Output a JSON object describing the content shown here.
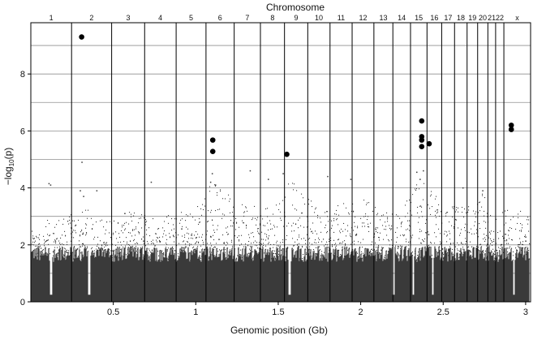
{
  "chart_data": {
    "type": "scatter",
    "title": "",
    "top_axis_title": "Chromosome",
    "xlabel": "Genomic position (Gb)",
    "ylabel_main": "−log",
    "ylabel_sub": "10",
    "ylabel_tail": "(p)",
    "xlim": [
      0.0,
      3.03
    ],
    "ylim": [
      0,
      9.8
    ],
    "x_ticks": [
      0.5,
      1.0,
      1.5,
      2.0,
      2.5,
      3.0
    ],
    "x_tick_labels": [
      "0.5",
      "1",
      "1.5",
      "2",
      "2.5",
      "3"
    ],
    "y_ticks": [
      0,
      2,
      4,
      6,
      8
    ],
    "y_tick_labels": [
      "0",
      "2",
      "4",
      "6",
      "8"
    ],
    "horizontal_grid": [
      1,
      2,
      3,
      4,
      5,
      6,
      7,
      8,
      9
    ],
    "grid": true,
    "chromosomes": [
      {
        "label": "1",
        "start": 0.0,
        "end": 0.247
      },
      {
        "label": "2",
        "start": 0.247,
        "end": 0.49
      },
      {
        "label": "3",
        "start": 0.49,
        "end": 0.69
      },
      {
        "label": "4",
        "start": 0.69,
        "end": 0.881
      },
      {
        "label": "5",
        "start": 0.881,
        "end": 1.062
      },
      {
        "label": "6",
        "start": 1.062,
        "end": 1.233
      },
      {
        "label": "7",
        "start": 1.233,
        "end": 1.392
      },
      {
        "label": "8",
        "start": 1.392,
        "end": 1.538
      },
      {
        "label": "9",
        "start": 1.538,
        "end": 1.679
      },
      {
        "label": "10",
        "start": 1.679,
        "end": 1.814
      },
      {
        "label": "11",
        "start": 1.814,
        "end": 1.948
      },
      {
        "label": "12",
        "start": 1.948,
        "end": 2.08
      },
      {
        "label": "13",
        "start": 2.08,
        "end": 2.195
      },
      {
        "label": "14",
        "start": 2.195,
        "end": 2.302
      },
      {
        "label": "15",
        "start": 2.302,
        "end": 2.402
      },
      {
        "label": "16",
        "start": 2.402,
        "end": 2.491
      },
      {
        "label": "17",
        "start": 2.491,
        "end": 2.569
      },
      {
        "label": "18",
        "start": 2.569,
        "end": 2.645
      },
      {
        "label": "19",
        "start": 2.645,
        "end": 2.709
      },
      {
        "label": "20",
        "start": 2.709,
        "end": 2.771
      },
      {
        "label": "21",
        "start": 2.771,
        "end": 2.818
      },
      {
        "label": "22",
        "start": 2.818,
        "end": 2.868
      },
      {
        "label": "x",
        "start": 2.868,
        "end": 3.03
      }
    ],
    "background_association": {
      "description_free": true,
      "typical_max": [
        {
          "x": 0.02,
          "y": 2.4
        },
        {
          "x": 0.1,
          "y": 2.9
        },
        {
          "x": 0.2,
          "y": 3.0
        },
        {
          "x": 0.33,
          "y": 3.3
        },
        {
          "x": 0.45,
          "y": 2.9
        },
        {
          "x": 0.6,
          "y": 3.2
        },
        {
          "x": 0.78,
          "y": 3.1
        },
        {
          "x": 0.97,
          "y": 3.2
        },
        {
          "x": 1.1,
          "y": 4.4
        },
        {
          "x": 1.3,
          "y": 3.4
        },
        {
          "x": 1.46,
          "y": 3.3
        },
        {
          "x": 1.55,
          "y": 4.4
        },
        {
          "x": 1.75,
          "y": 3.4
        },
        {
          "x": 1.88,
          "y": 3.5
        },
        {
          "x": 2.01,
          "y": 3.7
        },
        {
          "x": 2.14,
          "y": 3.1
        },
        {
          "x": 2.25,
          "y": 3.4
        },
        {
          "x": 2.36,
          "y": 4.4
        },
        {
          "x": 2.45,
          "y": 3.8
        },
        {
          "x": 2.53,
          "y": 3.4
        },
        {
          "x": 2.61,
          "y": 3.5
        },
        {
          "x": 2.68,
          "y": 3.3
        },
        {
          "x": 2.74,
          "y": 4.0
        },
        {
          "x": 2.8,
          "y": 3.0
        },
        {
          "x": 2.84,
          "y": 3.2
        },
        {
          "x": 2.95,
          "y": 3.3
        },
        {
          "x": 3.02,
          "y": 3.1
        }
      ],
      "gaps": [
        0.122,
        0.355,
        1.57,
        2.198,
        2.318,
        2.437,
        2.93
      ]
    },
    "scattered_points": [
      {
        "x": 0.11,
        "y": 4.15
      },
      {
        "x": 0.12,
        "y": 4.1
      },
      {
        "x": 0.31,
        "y": 4.9
      },
      {
        "x": 0.3,
        "y": 3.9
      },
      {
        "x": 0.32,
        "y": 3.7
      },
      {
        "x": 0.4,
        "y": 3.9
      },
      {
        "x": 0.57,
        "y": 3.1
      },
      {
        "x": 0.73,
        "y": 4.2
      },
      {
        "x": 1.1,
        "y": 4.5
      },
      {
        "x": 1.09,
        "y": 4.2
      },
      {
        "x": 1.12,
        "y": 4.1
      },
      {
        "x": 1.33,
        "y": 4.6
      },
      {
        "x": 1.44,
        "y": 4.3
      },
      {
        "x": 1.53,
        "y": 4.5
      },
      {
        "x": 1.8,
        "y": 4.4
      },
      {
        "x": 1.94,
        "y": 4.3
      },
      {
        "x": 2.34,
        "y": 4.55
      },
      {
        "x": 2.36,
        "y": 4.3
      },
      {
        "x": 2.38,
        "y": 4.6
      },
      {
        "x": 2.62,
        "y": 4.0
      },
      {
        "x": 2.74,
        "y": 3.9
      }
    ],
    "significant_hits": [
      {
        "chromosome": "2",
        "x": 0.308,
        "y": 9.3
      },
      {
        "chromosome": "6",
        "x": 1.103,
        "y": 5.68
      },
      {
        "chromosome": "6",
        "x": 1.103,
        "y": 5.28
      },
      {
        "chromosome": "9",
        "x": 1.552,
        "y": 5.18
      },
      {
        "chromosome": "15",
        "x": 2.37,
        "y": 6.35
      },
      {
        "chromosome": "15",
        "x": 2.37,
        "y": 5.8
      },
      {
        "chromosome": "15",
        "x": 2.37,
        "y": 5.68
      },
      {
        "chromosome": "15",
        "x": 2.37,
        "y": 5.45
      },
      {
        "chromosome": "16",
        "x": 2.415,
        "y": 5.55
      },
      {
        "chromosome": "x",
        "x": 2.913,
        "y": 6.2
      },
      {
        "chromosome": "x",
        "x": 2.913,
        "y": 6.05
      }
    ],
    "colors": {
      "points": "#3a3a3a",
      "hits": "#000000",
      "grid": "#8f8f8f",
      "chromosome_lines": "#000000",
      "plot_border": "#000000"
    }
  }
}
